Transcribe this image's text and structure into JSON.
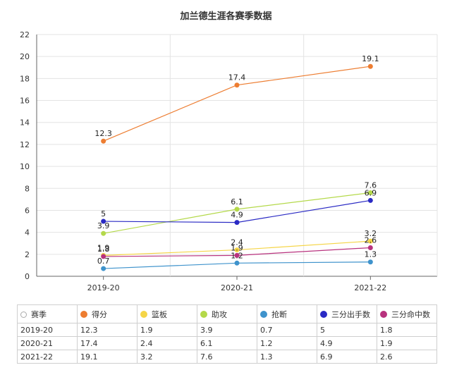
{
  "chart_data": {
    "type": "line",
    "title": "加兰德生涯各赛季数据",
    "categories": [
      "2019-20",
      "2020-21",
      "2021-22"
    ],
    "ylim": [
      0,
      22
    ],
    "yticks": [
      0,
      2,
      4,
      6,
      8,
      10,
      12,
      14,
      16,
      18,
      20,
      22
    ],
    "grid": true,
    "legend": "bottom-table",
    "series": [
      {
        "name": "得分",
        "color": "#ed7d31",
        "values": [
          12.3,
          17.4,
          19.1
        ],
        "labels": [
          "12.3",
          "17.4",
          "19.1"
        ]
      },
      {
        "name": "篮板",
        "color": "#f5d547",
        "values": [
          1.9,
          2.4,
          3.2
        ],
        "labels": [
          "1.9",
          "2.4",
          "3.2"
        ]
      },
      {
        "name": "助攻",
        "color": "#b4d94a",
        "values": [
          3.9,
          6.1,
          7.6
        ],
        "labels": [
          "3.9",
          "6.1",
          "7.6"
        ]
      },
      {
        "name": "抢断",
        "color": "#3f93cc",
        "values": [
          0.7,
          1.2,
          1.3
        ],
        "labels": [
          "0.7",
          "1.2",
          "1.3"
        ]
      },
      {
        "name": "三分出手数",
        "color": "#2a2ac4",
        "values": [
          5,
          4.9,
          6.9
        ],
        "labels": [
          "5",
          "4.9",
          "6.9"
        ]
      },
      {
        "name": "三分命中数",
        "color": "#b8327e",
        "values": [
          1.8,
          1.9,
          2.6
        ],
        "labels": [
          "1.8",
          "1.9",
          "2.6"
        ]
      }
    ]
  },
  "table": {
    "header_label": "赛季",
    "rows": [
      {
        "season": "2019-20",
        "cells": [
          "12.3",
          "1.9",
          "3.9",
          "0.7",
          "5",
          "1.8"
        ]
      },
      {
        "season": "2020-21",
        "cells": [
          "17.4",
          "2.4",
          "6.1",
          "1.2",
          "4.9",
          "1.9"
        ]
      },
      {
        "season": "2021-22",
        "cells": [
          "19.1",
          "3.2",
          "7.6",
          "1.3",
          "6.9",
          "2.6"
        ]
      }
    ]
  }
}
